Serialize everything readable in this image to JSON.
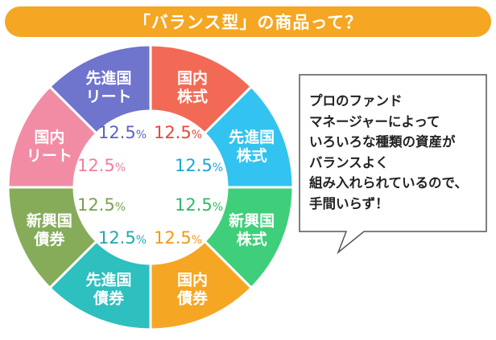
{
  "title": "「バランス型」の商品って？",
  "colors": {
    "title_bg": "#f5a623",
    "bubble_border": "#555555"
  },
  "chart_data": {
    "type": "pie",
    "donut": true,
    "slices": [
      {
        "label": [
          "国内",
          "株式"
        ],
        "value": 12.5,
        "value_label": "12.5",
        "unit": "%",
        "color": "#f26a55",
        "text_color": "#e8473a"
      },
      {
        "label": [
          "先進国",
          "株式"
        ],
        "value": 12.5,
        "value_label": "12.5",
        "unit": "%",
        "color": "#33c3f0",
        "text_color": "#1aa7d6"
      },
      {
        "label": [
          "新興国",
          "株式"
        ],
        "value": 12.5,
        "value_label": "12.5",
        "unit": "%",
        "color": "#3fcf7a",
        "text_color": "#2fb866"
      },
      {
        "label": [
          "国内",
          "債券"
        ],
        "value": 12.5,
        "value_label": "12.5",
        "unit": "%",
        "color": "#f5a623",
        "text_color": "#f0991a"
      },
      {
        "label": [
          "先進国",
          "債券"
        ],
        "value": 12.5,
        "value_label": "12.5",
        "unit": "%",
        "color": "#2ebfbf",
        "text_color": "#1fa9b0"
      },
      {
        "label": [
          "新興国",
          "債券"
        ],
        "value": 12.5,
        "value_label": "12.5",
        "unit": "%",
        "color": "#86ac5a",
        "text_color": "#7aa04e"
      },
      {
        "label": [
          "国内",
          "リート"
        ],
        "value": 12.5,
        "value_label": "12.5",
        "unit": "%",
        "color": "#f28ca5",
        "text_color": "#f27e9a"
      },
      {
        "label": [
          "先進国",
          "リート"
        ],
        "value": 12.5,
        "value_label": "12.5",
        "unit": "%",
        "color": "#6f74cc",
        "text_color": "#5e62c2"
      }
    ]
  },
  "bubble": {
    "lines": [
      "プロのファンド",
      "マネージャーによって",
      "いろいろな種類の資産が",
      "バランスよく",
      "組み入れられているので、",
      "手間いらず！"
    ]
  }
}
